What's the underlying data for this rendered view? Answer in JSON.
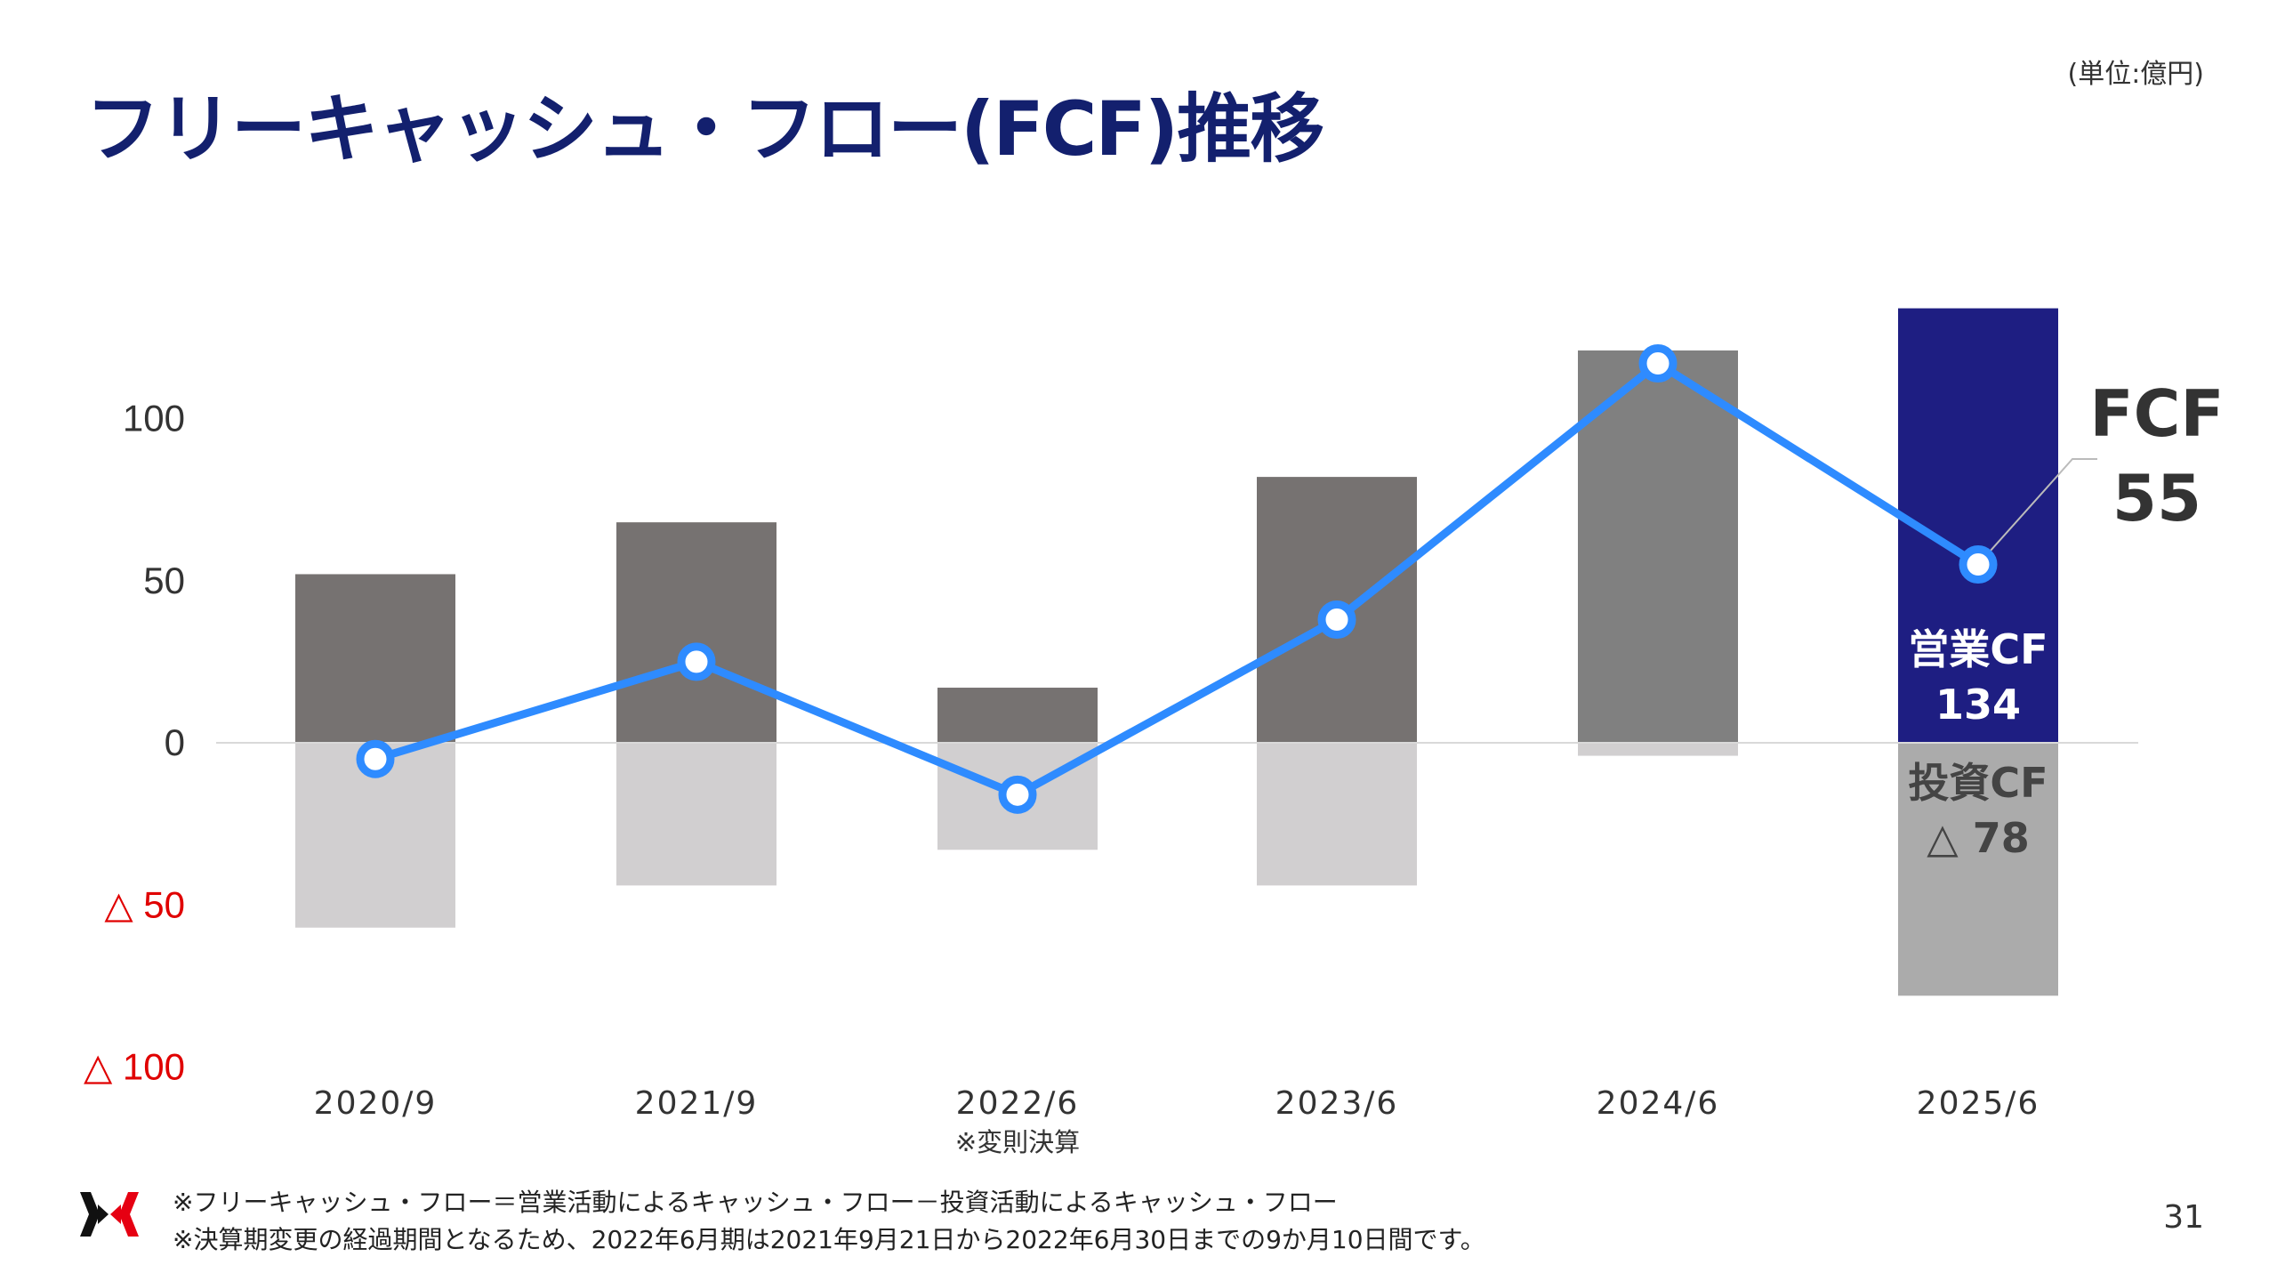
{
  "title": "フリーキャッシュ・フロー(FCF)推移",
  "unit": "(単位:億円)",
  "page_number": "31",
  "footnotes": [
    "※フリーキャッシュ・フロー＝営業活動によるキャッシュ・フロー－投資活動によるキャッシュ・フロー",
    "※決算期変更の経過期間となるため、2022年6月期は2021年9月21日から2022年6月30日までの9か月10日間です。"
  ],
  "chart_data": {
    "type": "bar",
    "categories": [
      "2020/9",
      "2021/9",
      "2022/6",
      "2023/6",
      "2024/6",
      "2025/6"
    ],
    "category_notes": {
      "2022/6": "※変則決算"
    },
    "series": [
      {
        "name": "営業CF",
        "type": "bar",
        "values": [
          52,
          68,
          17,
          82,
          121,
          134
        ]
      },
      {
        "name": "投資CF",
        "type": "bar",
        "values": [
          -57,
          -44,
          -33,
          -44,
          -4,
          -78
        ]
      },
      {
        "name": "FCF",
        "type": "line",
        "values": [
          -5,
          25,
          -16,
          38,
          117,
          55
        ]
      }
    ],
    "y_ticks": [
      {
        "value": 100,
        "label": "100"
      },
      {
        "value": 50,
        "label": "50"
      },
      {
        "value": 0,
        "label": "0"
      },
      {
        "value": -50,
        "label": "△ 50"
      },
      {
        "value": -100,
        "label": "△ 100"
      }
    ],
    "ylim": [
      -100,
      140
    ],
    "annotations": {
      "fcf_label": "FCF",
      "fcf_value": "55",
      "op_label": "営業CF",
      "op_value": "134",
      "inv_label": "投資CF",
      "inv_value": "△ 78"
    },
    "colors": {
      "op_bar": "#767271",
      "op_bar_2024": "#808080",
      "op_bar_latest": "#1e1e82",
      "inv_bar": "#d1cfd0",
      "inv_bar_latest": "#ababab",
      "line": "#2e8bff",
      "negative_tick": "#e00000"
    },
    "grid": false
  }
}
